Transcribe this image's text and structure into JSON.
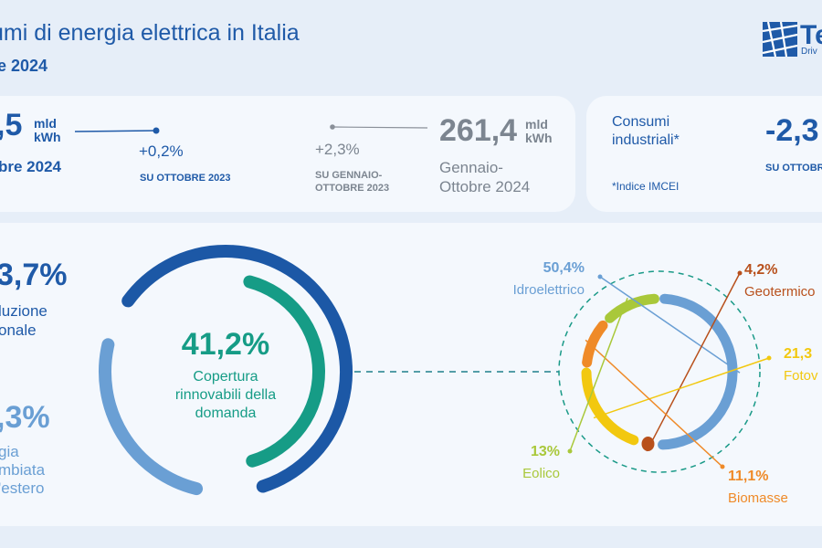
{
  "header": {
    "title": "umi di energia elettrica in Italia",
    "subtitle": "re 2024"
  },
  "logo": {
    "text": "Te",
    "tagline": "Driv"
  },
  "kpi": {
    "month_value": ",5",
    "month_unit_1": "mld",
    "month_unit_2": "kWh",
    "month_label": "bre 2024",
    "month_change": "+0,2%",
    "month_change_label": "SU OTTOBRE 2023",
    "ytd_change": "+2,3%",
    "ytd_change_label_1": "SU GENNAIO-",
    "ytd_change_label_2": "OTTOBRE 2023",
    "ytd_value": "261,4",
    "ytd_unit_1": "mld",
    "ytd_unit_2": "kWh",
    "ytd_label_1": "Gennaio-",
    "ytd_label_2": "Ottobre 2024"
  },
  "industrial": {
    "label_1": "Consumi",
    "label_2": "industriali*",
    "note": "*Indice IMCEI",
    "value": "-2,3",
    "value_label": "SU OTTOBR"
  },
  "left_stats": {
    "national_value": "3,7%",
    "national_label_1": "luzione",
    "national_label_2": "onale",
    "import_value": ",3%",
    "import_label_1": "gia",
    "import_label_2": "mbiata",
    "import_label_3": "'estero"
  },
  "colors": {
    "dark_blue": "#1c58a6",
    "light_blue": "#6a9fd4",
    "teal": "#169c86",
    "hydro": "#6a9fd4",
    "geo": "#b8501c",
    "solar": "#f2c80f",
    "bio": "#ef8a28",
    "wind": "#a9c83a"
  },
  "chart_data": [
    {
      "type": "pie",
      "title": "",
      "center_value": "41,2%",
      "center_label_1": "Copertura",
      "center_label_2": "rinnovabili della",
      "center_label_3": "domanda",
      "series": [
        {
          "name": "Copertura rinnovabili della domanda",
          "value": 41.2
        }
      ]
    },
    {
      "type": "pie",
      "title": "",
      "categories": [
        "Idroelettrico",
        "Geotermico",
        "Fotov",
        "Biomasse",
        "Eolico"
      ],
      "values": [
        50.4,
        4.2,
        21.3,
        11.1,
        13
      ],
      "labels": [
        "50,4%",
        "4,2%",
        "21,3",
        "11,1%",
        "13%"
      ]
    }
  ]
}
